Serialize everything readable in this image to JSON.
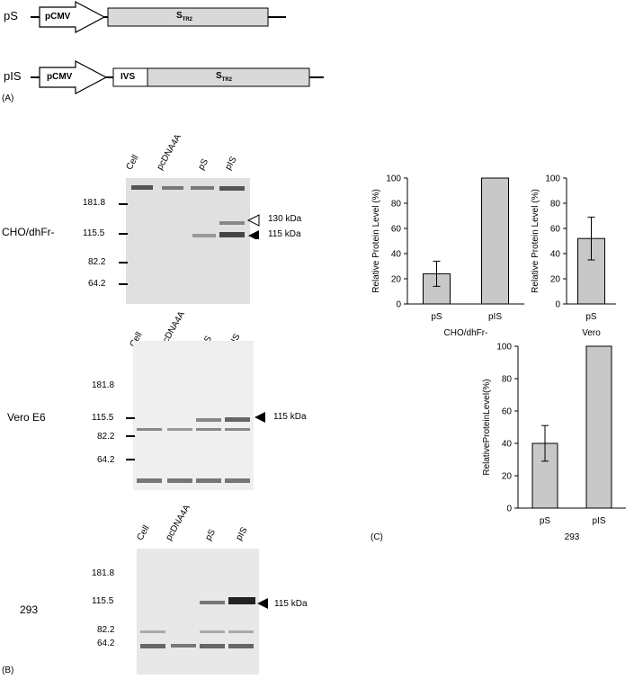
{
  "panel_a": {
    "panel_label": "(A)",
    "constructs": [
      {
        "name": "pS",
        "promoter": "pCMV",
        "gene": "S",
        "gene_sub": "TR2"
      },
      {
        "name": "pIS",
        "promoter": "pCMV",
        "intron": "IVS",
        "gene": "S",
        "gene_sub": "TR2"
      }
    ]
  },
  "panel_b": {
    "panel_label": "(B)",
    "lane_labels": [
      "Cell",
      "pcDNA4A",
      "pS",
      "pIS"
    ],
    "blots": [
      {
        "cell_line": "CHO/dhFr-",
        "markers": [
          "181.8",
          "115.5",
          "82.2",
          "64.2"
        ],
        "bands": [
          "130 kDa",
          "115 kDa"
        ]
      },
      {
        "cell_line": "Vero E6",
        "markers": [
          "181.8",
          "115.5",
          "82.2",
          "64.2"
        ],
        "bands": [
          "115 kDa"
        ]
      },
      {
        "cell_line": "293",
        "markers": [
          "181.8",
          "115.5",
          "82.2",
          "64.2"
        ],
        "bands": [
          "115 kDa"
        ]
      }
    ]
  },
  "panel_c": {
    "panel_label": "(C)",
    "colors": {
      "bar_fill": "#c8c8c8",
      "bar_stroke": "#000000"
    }
  },
  "chart_data": [
    {
      "type": "bar",
      "categories": [
        "pS",
        "pIS"
      ],
      "values": [
        24,
        100
      ],
      "error": [
        10,
        0
      ],
      "xlabel": "CHO/dhFr-",
      "ylabel": "Relative Protein Level (%)",
      "ylim": [
        0,
        100
      ],
      "yticks": [
        0,
        20,
        40,
        60,
        80,
        100
      ]
    },
    {
      "type": "bar",
      "categories": [
        "pS"
      ],
      "values": [
        52
      ],
      "error": [
        17
      ],
      "xlabel": "Vero",
      "ylabel": "Relative Protein Level (%)",
      "ylim": [
        0,
        100
      ],
      "yticks": [
        0,
        20,
        40,
        60,
        80,
        100
      ]
    },
    {
      "type": "bar",
      "categories": [
        "pS",
        "pIS"
      ],
      "values": [
        40,
        100
      ],
      "error": [
        11,
        0
      ],
      "xlabel": "293",
      "ylabel": "RelativeProteinLevel(%)",
      "ylim": [
        0,
        100
      ],
      "yticks": [
        0,
        20,
        40,
        60,
        80,
        100
      ]
    }
  ]
}
